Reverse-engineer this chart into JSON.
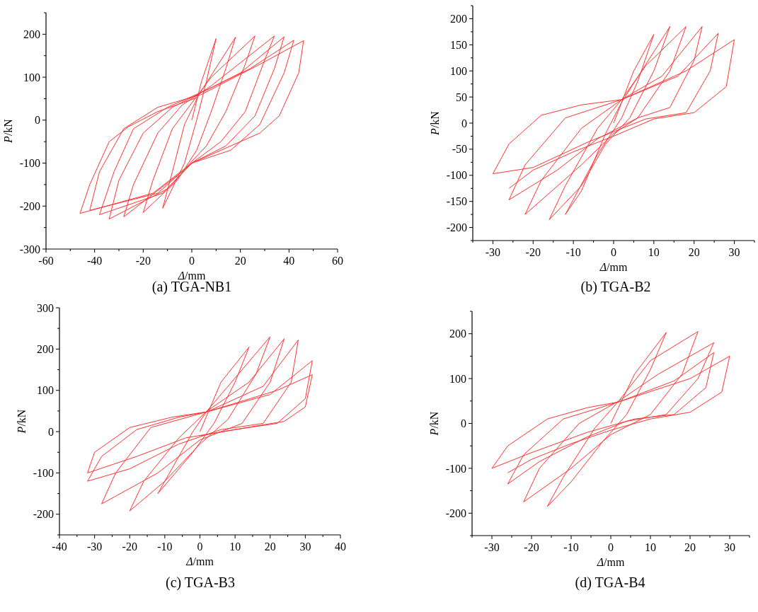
{
  "chart_data": [
    {
      "type": "line",
      "title": "(a) TGA-NB1",
      "xlabel": "Δ/mm",
      "ylabel": "P/kN",
      "xlim": [
        -60,
        60
      ],
      "ylim": [
        -300,
        250
      ],
      "xticks": [
        -60,
        {
          "value": -50,
          "label": null
        },
        -40,
        {
          "value": -30,
          "label": null
        },
        -20,
        {
          "value": -10,
          "label": null
        },
        0,
        {
          "value": 10,
          "label": null
        },
        20,
        {
          "value": 30,
          "label": null
        },
        40,
        {
          "value": 50,
          "label": null
        },
        60
      ],
      "yticks": [
        -300,
        {
          "value": -250,
          "label": null
        },
        -200,
        {
          "value": -150,
          "label": null
        },
        -100,
        {
          "value": -50,
          "label": null
        },
        0,
        {
          "value": 50,
          "label": null
        },
        100,
        {
          "value": 150,
          "label": null
        },
        200,
        {
          "value": 250,
          "label": null
        }
      ],
      "series": [
        {
          "color": "#ff3333",
          "x": [
            0,
            4,
            10,
            6,
            2,
            -3,
            -12,
            -8,
            -3,
            3,
            18,
            14,
            8,
            2,
            -6,
            -20,
            -16,
            -8,
            0,
            8,
            26,
            22,
            14,
            6,
            -4,
            -28,
            -24,
            -14,
            -4,
            8,
            34,
            30,
            22,
            12,
            0,
            -10,
            -34,
            -30,
            -20,
            -8,
            6,
            20,
            38,
            34,
            26,
            14,
            0,
            -12,
            -38,
            -32,
            -24,
            -10,
            6,
            24,
            42,
            38,
            28,
            16,
            0,
            -14,
            -42,
            -38,
            -28,
            -14,
            4,
            28,
            46,
            44,
            36,
            28,
            12,
            0,
            -16,
            -46,
            -42,
            -34,
            -26,
            -14,
            2
          ],
          "values": [
            0,
            90,
            190,
            90,
            0,
            -100,
            -205,
            -120,
            -10,
            60,
            193,
            120,
            20,
            -70,
            -140,
            -215,
            -140,
            -20,
            40,
            100,
            196,
            130,
            20,
            -60,
            -120,
            -225,
            -150,
            -30,
            35,
            80,
            196,
            140,
            20,
            -50,
            -100,
            -160,
            -230,
            -140,
            -30,
            30,
            70,
            110,
            194,
            120,
            10,
            -60,
            -100,
            -170,
            -220,
            -120,
            -20,
            30,
            70,
            120,
            186,
            110,
            -10,
            -70,
            -100,
            -170,
            -210,
            -120,
            -20,
            30,
            60,
            130,
            185,
            110,
            10,
            -30,
            -70,
            -100,
            -170,
            -217,
            -150,
            -50,
            -15,
            20,
            52
          ]
        }
      ]
    },
    {
      "type": "line",
      "title": "(b) TGA-B2",
      "xlabel": "Δ/mm",
      "ylabel": "P/kN",
      "xlim": [
        -35,
        35
      ],
      "ylim": [
        -225,
        225
      ],
      "xticks": [
        {
          "value": -35,
          "label": null
        },
        -30,
        {
          "value": -25,
          "label": null
        },
        -20,
        {
          "value": -15,
          "label": null
        },
        -10,
        {
          "value": -5,
          "label": null
        },
        0,
        {
          "value": 5,
          "label": null
        },
        10,
        {
          "value": 15,
          "label": null
        },
        20,
        {
          "value": 25,
          "label": null
        },
        30,
        {
          "value": 35,
          "label": null
        }
      ],
      "yticks": [
        {
          "value": -225,
          "label": null
        },
        -200,
        {
          "value": -175,
          "label": null
        },
        -150,
        {
          "value": -125,
          "label": null
        },
        -100,
        {
          "value": -75,
          "label": null
        },
        -50,
        {
          "value": -25,
          "label": null
        },
        0,
        {
          "value": 25,
          "label": null
        },
        50,
        {
          "value": 75,
          "label": null
        },
        100,
        {
          "value": 125,
          "label": null
        },
        150,
        {
          "value": 175,
          "label": null
        },
        200,
        {
          "value": 225,
          "label": null
        }
      ],
      "series": [
        {
          "color": "#ff3333",
          "x": [
            0,
            5,
            10,
            6,
            2,
            -4,
            -12,
            -8,
            -2,
            2,
            14,
            10,
            4,
            -2,
            -8,
            -16,
            -12,
            -4,
            2,
            8,
            18,
            14,
            6,
            0,
            -8,
            -22,
            -18,
            -8,
            2,
            12,
            22,
            20,
            14,
            6,
            -4,
            -14,
            -26,
            -22,
            -12,
            2,
            16,
            26,
            24,
            18,
            8,
            -6,
            -20,
            -30,
            -26,
            -18,
            -8,
            2,
            18,
            30,
            28,
            20,
            10,
            0,
            -10,
            -20,
            -26
          ],
          "values": [
            0,
            100,
            170,
            80,
            10,
            -60,
            -175,
            -130,
            -20,
            40,
            185,
            100,
            10,
            -40,
            -120,
            -185,
            -120,
            -10,
            45,
            110,
            185,
            100,
            10,
            -20,
            -80,
            -175,
            -110,
            -10,
            45,
            90,
            185,
            120,
            30,
            10,
            -30,
            -90,
            -147,
            -80,
            10,
            45,
            90,
            172,
            100,
            20,
            8,
            -35,
            -85,
            -97,
            -40,
            15,
            35,
            45,
            100,
            160,
            70,
            20,
            8,
            -25,
            -55,
            -90,
            -125
          ]
        }
      ]
    },
    {
      "type": "line",
      "title": "(c) TGA-B3",
      "xlabel": "Δ/mm",
      "ylabel": "P/kN",
      "xlim": [
        -40,
        40
      ],
      "ylim": [
        -250,
        300
      ],
      "xticks": [
        -40,
        {
          "value": -35,
          "label": null
        },
        -30,
        {
          "value": -25,
          "label": null
        },
        -20,
        {
          "value": -15,
          "label": null
        },
        -10,
        {
          "value": -5,
          "label": null
        },
        0,
        {
          "value": 5,
          "label": null
        },
        10,
        {
          "value": 15,
          "label": null
        },
        20,
        {
          "value": 25,
          "label": null
        },
        30,
        {
          "value": 35,
          "label": null
        },
        40
      ],
      "yticks": [
        {
          "value": -250,
          "label": null
        },
        -200,
        {
          "value": -150,
          "label": null
        },
        -100,
        {
          "value": -50,
          "label": null
        },
        0,
        {
          "value": 50,
          "label": null
        },
        100,
        {
          "value": 150,
          "label": null
        },
        200,
        {
          "value": 250,
          "label": null
        },
        300
      ],
      "series": [
        {
          "color": "#ff3333",
          "x": [
            0,
            6,
            14,
            10,
            4,
            -2,
            -12,
            -8,
            -2,
            2,
            20,
            16,
            8,
            0,
            -10,
            -20,
            -16,
            -6,
            2,
            14,
            24,
            20,
            12,
            0,
            -12,
            -28,
            -24,
            -14,
            2,
            18,
            28,
            26,
            18,
            6,
            -6,
            -20,
            -32,
            -28,
            -18,
            -6,
            2,
            20,
            32,
            30,
            22,
            10,
            -4,
            -18,
            -32,
            -30,
            -20,
            -8,
            2,
            22,
            32,
            30,
            24,
            12,
            0
          ],
          "values": [
            0,
            120,
            205,
            120,
            20,
            -50,
            -150,
            -90,
            0,
            50,
            230,
            140,
            30,
            -30,
            -120,
            -192,
            -120,
            -15,
            50,
            120,
            225,
            120,
            20,
            -20,
            -100,
            -175,
            -100,
            10,
            48,
            110,
            222,
            120,
            20,
            5,
            -30,
            -90,
            -120,
            -60,
            5,
            35,
            48,
            90,
            172,
            80,
            20,
            5,
            -15,
            -60,
            -100,
            -50,
            10,
            35,
            48,
            100,
            138,
            60,
            25,
            8,
            -10
          ]
        }
      ]
    },
    {
      "type": "line",
      "title": "(d) TGA-B4",
      "xlabel": "Δ/mm",
      "ylabel": "P/kN",
      "xlim": [
        -35,
        35
      ],
      "ylim": [
        -250,
        250
      ],
      "xticks": [
        {
          "value": -35,
          "label": null
        },
        -30,
        {
          "value": -25,
          "label": null
        },
        -20,
        {
          "value": -15,
          "label": null
        },
        -10,
        {
          "value": -5,
          "label": null
        },
        0,
        {
          "value": 5,
          "label": null
        },
        10,
        {
          "value": 15,
          "label": null
        },
        20,
        {
          "value": 25,
          "label": null
        },
        30,
        {
          "value": 35,
          "label": null
        }
      ],
      "yticks": [
        {
          "value": -250,
          "label": null
        },
        -200,
        {
          "value": -150,
          "label": null
        },
        -100,
        {
          "value": -50,
          "label": null
        },
        0,
        {
          "value": 50,
          "label": null
        },
        100,
        {
          "value": 150,
          "label": null
        },
        200,
        {
          "value": 250,
          "label": null
        }
      ],
      "series": [
        {
          "color": "#ff3333",
          "x": [
            0,
            6,
            14,
            10,
            4,
            -2,
            -10,
            -16,
            -12,
            -4,
            2,
            10,
            22,
            18,
            10,
            0,
            -10,
            -22,
            -18,
            -8,
            2,
            12,
            26,
            22,
            14,
            4,
            -6,
            -18,
            -26,
            -22,
            -12,
            2,
            16,
            26,
            24,
            16,
            6,
            -6,
            -20,
            -30,
            -26,
            -16,
            -6,
            2,
            20,
            30,
            28,
            20,
            10,
            0,
            -10,
            -20,
            -26
          ],
          "values": [
            0,
            110,
            203,
            120,
            20,
            -40,
            -130,
            -185,
            -120,
            -10,
            50,
            140,
            205,
            110,
            20,
            -25,
            -100,
            -175,
            -100,
            0,
            50,
            110,
            180,
            100,
            20,
            5,
            -30,
            -85,
            -135,
            -70,
            10,
            48,
            95,
            158,
            80,
            20,
            10,
            -20,
            -65,
            -100,
            -50,
            10,
            35,
            48,
            100,
            150,
            70,
            25,
            10,
            -15,
            -45,
            -80,
            -110
          ]
        }
      ]
    }
  ]
}
